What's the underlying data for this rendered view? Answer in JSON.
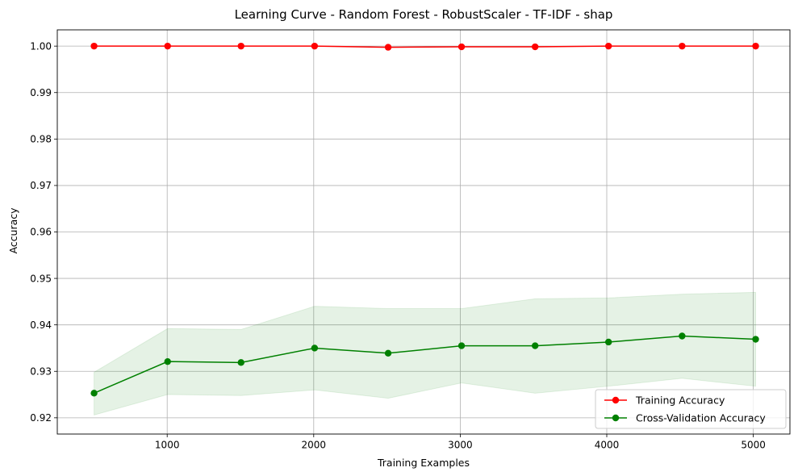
{
  "chart_data": {
    "type": "line",
    "title": "Learning Curve - Random Forest - RobustScaler - TF-IDF - shap",
    "xlabel": "Training Examples",
    "ylabel": "Accuracy",
    "xlim": [
      250,
      5250
    ],
    "ylim": [
      0.9165,
      1.0035
    ],
    "x_ticks": [
      1000,
      2000,
      3000,
      4000,
      5000
    ],
    "y_ticks": [
      0.92,
      0.93,
      0.94,
      0.95,
      0.96,
      0.97,
      0.98,
      0.99,
      1.0
    ],
    "x_tick_labels": [
      "1000",
      "2000",
      "3000",
      "4000",
      "5000"
    ],
    "y_tick_labels": [
      "0.92",
      "0.93",
      "0.94",
      "0.95",
      "0.96",
      "0.97",
      "0.98",
      "0.99",
      "1.00"
    ],
    "grid": true,
    "legend_position": "lower-right",
    "x": [
      501,
      1003,
      1504,
      2006,
      2508,
      3009,
      3511,
      4012,
      4514,
      5016
    ],
    "series": [
      {
        "name": "Training Accuracy",
        "color": "#ff0000",
        "values": [
          1.0,
          1.0,
          1.0,
          1.0,
          0.99975,
          0.99985,
          0.99985,
          1.0,
          1.0,
          1.0
        ],
        "band_lower": [
          1.0,
          1.0,
          1.0,
          1.0,
          0.99975,
          0.99985,
          0.99985,
          1.0,
          1.0,
          1.0
        ],
        "band_upper": [
          1.0,
          1.0,
          1.0,
          1.0,
          0.99975,
          0.99985,
          0.99985,
          1.0,
          1.0,
          1.0
        ]
      },
      {
        "name": "Cross-Validation Accuracy",
        "color": "#008000",
        "values": [
          0.9253,
          0.9321,
          0.9319,
          0.935,
          0.9339,
          0.9355,
          0.9355,
          0.9363,
          0.9376,
          0.9369
        ],
        "band_lower": [
          0.9206,
          0.925,
          0.9248,
          0.926,
          0.9242,
          0.9275,
          0.9253,
          0.9268,
          0.9285,
          0.9268
        ],
        "band_upper": [
          0.9298,
          0.9392,
          0.939,
          0.944,
          0.9435,
          0.9435,
          0.9456,
          0.9458,
          0.9466,
          0.947
        ]
      }
    ]
  }
}
